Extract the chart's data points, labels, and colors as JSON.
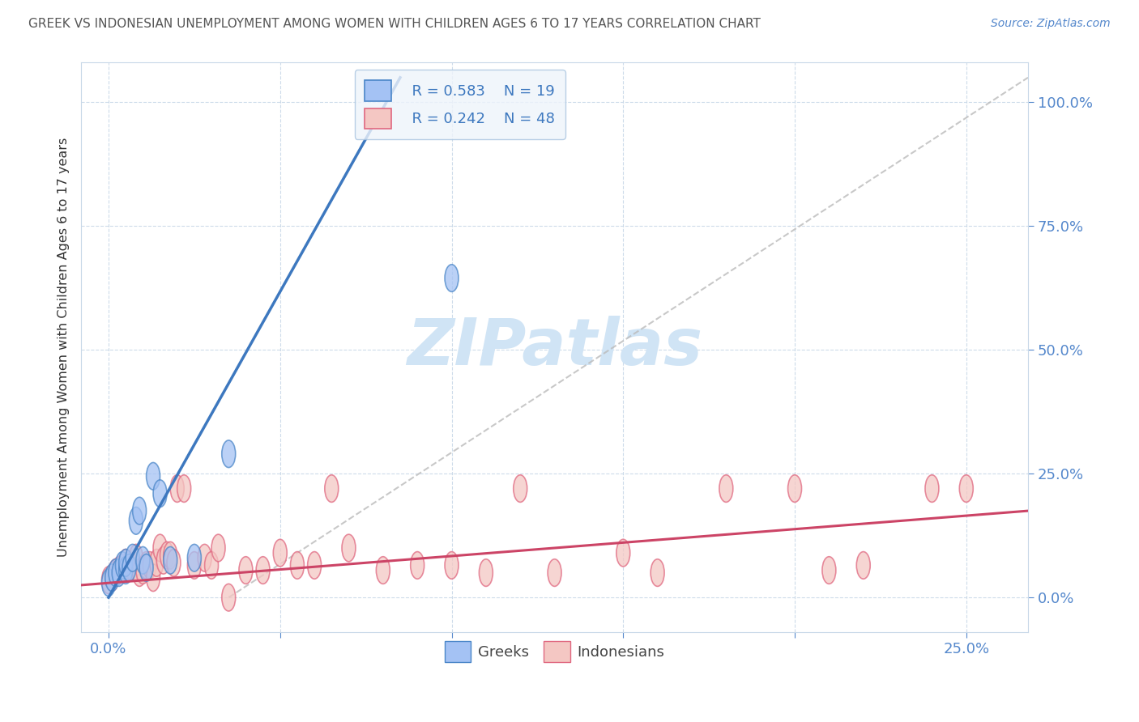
{
  "title": "GREEK VS INDONESIAN UNEMPLOYMENT AMONG WOMEN WITH CHILDREN AGES 6 TO 17 YEARS CORRELATION CHART",
  "source": "Source: ZipAtlas.com",
  "ylabel": "Unemployment Among Women with Children Ages 6 to 17 years",
  "yticks_labels": [
    "0.0%",
    "25.0%",
    "50.0%",
    "75.0%",
    "100.0%"
  ],
  "ytick_vals": [
    0.0,
    0.25,
    0.5,
    0.75,
    1.0
  ],
  "xtick_minor_vals": [
    0.0,
    0.05,
    0.1,
    0.15,
    0.2,
    0.25
  ],
  "xlim": [
    -0.008,
    0.268
  ],
  "ylim": [
    -0.07,
    1.08
  ],
  "greek_R": "R = 0.583",
  "greek_N": "N = 19",
  "indonesian_R": "R = 0.242",
  "indonesian_N": "N = 48",
  "greek_color": "#a4c2f4",
  "indonesian_color": "#f4c7c3",
  "greek_edge_color": "#4a86c8",
  "indonesian_edge_color": "#e06880",
  "greek_line_color": "#3d78bf",
  "indonesian_line_color": "#cc4466",
  "trend_line_color": "#bbbbbb",
  "watermark": "ZIPatlas",
  "watermark_color": "#d0e4f5",
  "background_color": "#ffffff",
  "grid_color": "#c8d8e8",
  "tick_label_color": "#5588cc",
  "title_color": "#555555",
  "legend_bg": "#eef4fb",
  "legend_border": "#a8c4e0",
  "greeks_x": [
    0.0,
    0.001,
    0.002,
    0.003,
    0.004,
    0.005,
    0.005,
    0.006,
    0.007,
    0.008,
    0.009,
    0.01,
    0.011,
    0.013,
    0.015,
    0.018,
    0.025,
    0.035,
    0.1
  ],
  "greeks_y": [
    0.03,
    0.04,
    0.05,
    0.05,
    0.065,
    0.055,
    0.07,
    0.06,
    0.08,
    0.155,
    0.175,
    0.075,
    0.06,
    0.245,
    0.21,
    0.075,
    0.08,
    0.29,
    0.645
  ],
  "indonesians_x": [
    0.0,
    0.001,
    0.002,
    0.003,
    0.004,
    0.005,
    0.006,
    0.007,
    0.008,
    0.009,
    0.01,
    0.011,
    0.012,
    0.013,
    0.014,
    0.015,
    0.016,
    0.017,
    0.018,
    0.019,
    0.02,
    0.022,
    0.025,
    0.028,
    0.03,
    0.032,
    0.035,
    0.04,
    0.045,
    0.05,
    0.055,
    0.06,
    0.065,
    0.07,
    0.08,
    0.09,
    0.1,
    0.11,
    0.12,
    0.13,
    0.15,
    0.16,
    0.18,
    0.2,
    0.21,
    0.22,
    0.24,
    0.25
  ],
  "indonesians_y": [
    0.035,
    0.04,
    0.05,
    0.055,
    0.06,
    0.07,
    0.065,
    0.06,
    0.08,
    0.05,
    0.055,
    0.065,
    0.065,
    0.04,
    0.07,
    0.1,
    0.075,
    0.085,
    0.085,
    0.07,
    0.22,
    0.22,
    0.065,
    0.08,
    0.065,
    0.1,
    0.0,
    0.055,
    0.055,
    0.09,
    0.065,
    0.065,
    0.22,
    0.1,
    0.055,
    0.065,
    0.065,
    0.05,
    0.22,
    0.05,
    0.09,
    0.05,
    0.22,
    0.22,
    0.055,
    0.065,
    0.22,
    0.22
  ],
  "greek_line_x0": 0.0,
  "greek_line_y0": 0.0,
  "greek_line_x1": 0.085,
  "greek_line_y1": 1.05,
  "indo_line_x0": -0.008,
  "indo_line_y0": 0.025,
  "indo_line_x1": 0.268,
  "indo_line_y1": 0.175,
  "diag_line_x0": 0.035,
  "diag_line_y0": 0.0,
  "diag_line_x1": 0.268,
  "diag_line_y1": 1.05
}
